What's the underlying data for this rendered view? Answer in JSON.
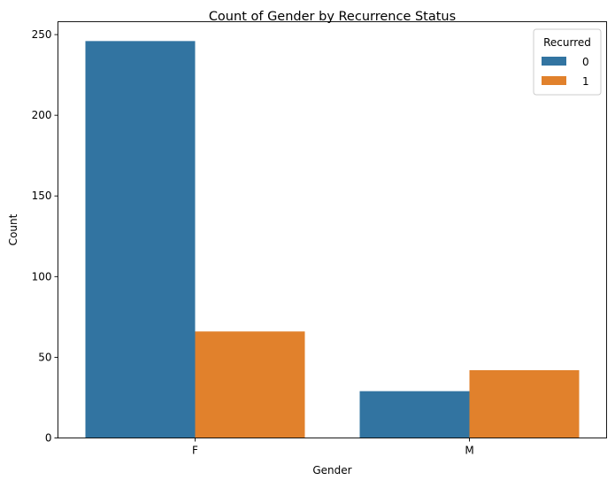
{
  "chart_data": {
    "type": "bar",
    "title": "Count of Gender by Recurrence Status",
    "xlabel": "Gender",
    "ylabel": "Count",
    "categories": [
      "F",
      "M"
    ],
    "ylim": [
      0,
      258
    ],
    "yticks": [
      0,
      50,
      100,
      150,
      200,
      250
    ],
    "grid": false,
    "legend": {
      "title": "Recurred",
      "placement": "top-right"
    },
    "series": [
      {
        "name": "0",
        "color": "#3274a1",
        "values": [
          246,
          29
        ]
      },
      {
        "name": "1",
        "color": "#e1812c",
        "values": [
          66,
          42
        ]
      }
    ]
  }
}
